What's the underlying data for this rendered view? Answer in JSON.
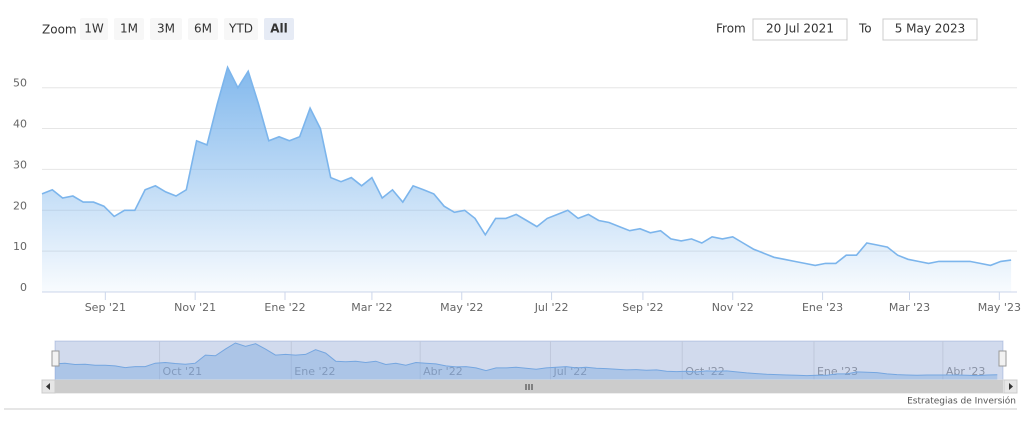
{
  "chart_data": {
    "type": "area",
    "color": "#7cb5ec",
    "range_selector": {
      "zoom_label": "Zoom",
      "buttons": [
        "1W",
        "1M",
        "3M",
        "6M",
        "YTD",
        "All"
      ],
      "selected": 5,
      "from_label": "From",
      "from": "20 Jul 2021",
      "to_label": "To",
      "to": "5 May 2023"
    },
    "credit": "Estrategias de Inversión",
    "xlim": [
      "2021-07-20",
      "2023-05-13"
    ],
    "ylim": [
      0,
      58
    ],
    "yticks": [
      0,
      10,
      20,
      30,
      40,
      50
    ],
    "grid": true,
    "xticks": [
      {
        "value": "2021-09-01",
        "label": "Sep '21"
      },
      {
        "value": "2021-11-01",
        "label": "Nov '21"
      },
      {
        "value": "2022-01-01",
        "label": "Ene '22"
      },
      {
        "value": "2022-03-01",
        "label": "Mar '22"
      },
      {
        "value": "2022-05-01",
        "label": "May '22"
      },
      {
        "value": "2022-07-01",
        "label": "Jul '22"
      },
      {
        "value": "2022-09-01",
        "label": "Sep '22"
      },
      {
        "value": "2022-11-01",
        "label": "Nov '22"
      },
      {
        "value": "2023-01-01",
        "label": "Ene '23"
      },
      {
        "value": "2023-03-01",
        "label": "Mar '23"
      },
      {
        "value": "2023-05-01",
        "label": "May '23"
      }
    ],
    "navigator_xticks": [
      {
        "value": "2021-10-01",
        "label": "Oct '21"
      },
      {
        "value": "2022-01-01",
        "label": "Ene '22"
      },
      {
        "value": "2022-04-01",
        "label": "Abr '22"
      },
      {
        "value": "2022-07-01",
        "label": "Jul '22"
      },
      {
        "value": "2022-10-01",
        "label": "Oct '22"
      },
      {
        "value": "2023-01-01",
        "label": "Ene '23"
      },
      {
        "value": "2023-04-01",
        "label": "Abr '23"
      }
    ],
    "x": [
      "2021-07-20",
      "2021-07-27",
      "2021-08-03",
      "2021-08-10",
      "2021-08-17",
      "2021-08-24",
      "2021-08-31",
      "2021-09-07",
      "2021-09-14",
      "2021-09-21",
      "2021-09-28",
      "2021-10-05",
      "2021-10-12",
      "2021-10-19",
      "2021-10-26",
      "2021-11-02",
      "2021-11-09",
      "2021-11-16",
      "2021-11-23",
      "2021-11-30",
      "2021-12-07",
      "2021-12-14",
      "2021-12-21",
      "2021-12-28",
      "2022-01-04",
      "2022-01-11",
      "2022-01-18",
      "2022-01-25",
      "2022-02-01",
      "2022-02-08",
      "2022-02-15",
      "2022-02-22",
      "2022-03-01",
      "2022-03-08",
      "2022-03-15",
      "2022-03-22",
      "2022-03-29",
      "2022-04-05",
      "2022-04-12",
      "2022-04-19",
      "2022-04-26",
      "2022-05-03",
      "2022-05-10",
      "2022-05-17",
      "2022-05-24",
      "2022-05-31",
      "2022-06-07",
      "2022-06-14",
      "2022-06-21",
      "2022-06-28",
      "2022-07-05",
      "2022-07-12",
      "2022-07-19",
      "2022-07-26",
      "2022-08-02",
      "2022-08-09",
      "2022-08-16",
      "2022-08-23",
      "2022-08-30",
      "2022-09-06",
      "2022-09-13",
      "2022-09-20",
      "2022-09-27",
      "2022-10-04",
      "2022-10-11",
      "2022-10-18",
      "2022-10-25",
      "2022-11-01",
      "2022-11-08",
      "2022-11-15",
      "2022-11-22",
      "2022-11-29",
      "2022-12-06",
      "2022-12-13",
      "2022-12-20",
      "2022-12-27",
      "2023-01-03",
      "2023-01-10",
      "2023-01-17",
      "2023-01-24",
      "2023-01-31",
      "2023-02-07",
      "2023-02-14",
      "2023-02-21",
      "2023-02-28",
      "2023-03-07",
      "2023-03-14",
      "2023-03-21",
      "2023-03-28",
      "2023-04-04",
      "2023-04-11",
      "2023-04-18",
      "2023-04-25",
      "2023-05-02",
      "2023-05-09"
    ],
    "values": [
      24,
      25,
      23,
      23.5,
      22,
      22,
      21,
      18.5,
      20,
      20,
      25,
      26,
      24.5,
      23.5,
      25,
      37,
      36,
      46,
      55,
      50,
      54,
      46,
      37,
      38,
      37,
      38,
      45,
      40,
      28,
      27,
      28,
      26,
      28,
      23,
      25,
      22,
      26,
      25,
      24,
      21,
      19.5,
      20,
      18,
      14,
      18,
      18,
      19,
      17.5,
      16,
      18,
      19,
      20,
      18,
      19,
      17.5,
      17,
      16,
      15,
      15.5,
      14.5,
      15,
      13,
      12.5,
      13,
      12,
      13.5,
      13,
      13.5,
      12,
      10.5,
      9.5,
      8.5,
      8,
      7.5,
      7,
      6.5,
      7,
      7,
      9,
      9,
      12,
      11.5,
      11,
      9,
      8,
      7.5,
      7,
      7.5,
      7.5,
      7.5,
      7.5,
      7,
      6.5,
      7.5,
      7.8
    ]
  }
}
